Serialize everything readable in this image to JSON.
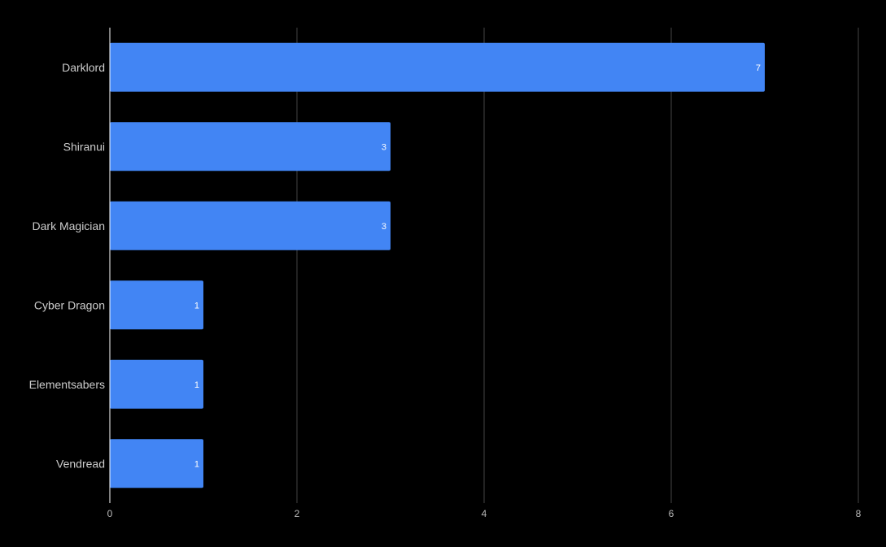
{
  "chart_data": {
    "type": "bar",
    "orientation": "horizontal",
    "categories": [
      "Darklord",
      "Shiranui",
      "Dark Magician",
      "Cyber Dragon",
      "Elementsabers",
      "Vendread"
    ],
    "values": [
      7,
      3,
      3,
      1,
      1,
      1
    ],
    "data_labels": [
      "7",
      "3",
      "3",
      "1",
      "1",
      "1"
    ],
    "xlim": [
      0,
      8
    ],
    "xticks": [
      0,
      2,
      4,
      6,
      8
    ],
    "xtick_labels": [
      "0",
      "2",
      "4",
      "6",
      "8"
    ],
    "title": "",
    "xlabel": "",
    "ylabel": "",
    "grid": true,
    "legend": "none",
    "colors": {
      "background": "#000000",
      "bar": "#4285f4",
      "grid": "#444444",
      "axis": "#ffffff",
      "category_text": "#cccccc",
      "tick_text": "#bbbbbb",
      "data_label_text": "#ffffff"
    }
  }
}
